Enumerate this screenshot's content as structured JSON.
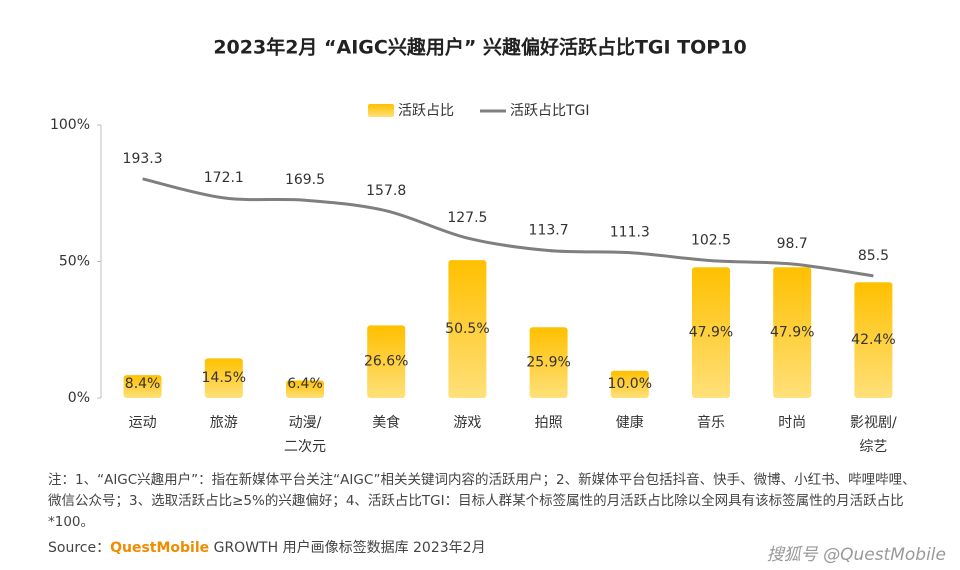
{
  "chart_data": {
    "type": "bar",
    "title": "2023年2月 “AIGC兴趣用户” 兴趣偏好活跃占比TGI TOP10",
    "categories": [
      "运动",
      "旅游",
      "动漫/\n二次元",
      "美食",
      "游戏",
      "拍照",
      "健康",
      "音乐",
      "时尚",
      "影视剧/\n综艺"
    ],
    "series": [
      {
        "name": "活跃占比",
        "type": "bar",
        "color": "#ffc000",
        "values": [
          8.4,
          14.5,
          6.4,
          26.6,
          50.5,
          25.9,
          10.0,
          47.9,
          47.9,
          42.4
        ],
        "value_labels": [
          "8.4%",
          "14.5%",
          "6.4%",
          "26.6%",
          "50.5%",
          "25.9%",
          "10.0%",
          "47.9%",
          "47.9%",
          "42.4%"
        ]
      },
      {
        "name": "活跃占比TGI",
        "type": "line",
        "axis": "y2",
        "color": "#7f7f7f",
        "values": [
          193.3,
          172.1,
          169.5,
          157.8,
          127.5,
          113.7,
          111.3,
          102.5,
          98.7,
          85.5
        ]
      }
    ],
    "ylim": [
      0,
      100
    ],
    "yticks": [
      {
        "value": 0,
        "label": "0%"
      },
      {
        "value": 50,
        "label": "50%"
      },
      {
        "value": 100,
        "label": "100%"
      }
    ],
    "y2lim": [
      -50,
      253
    ],
    "grid": false,
    "legend": "top",
    "note": "注：1、“AIGC兴趣用户”：指在新媒体平台关注“AIGC”相关关键词内容的活跃用户；2、新媒体平台包括抖音、快手、微博、小红书、哔哩哔哩、微信公众号；3、选取活跃占比≥5%的兴趣偏好；4、活跃占比TGI：目标人群某个标签属性的月活跃占比除以全网具有该标签属性的月活跃占比*100。",
    "source": {
      "prefix": "Source：",
      "brand": "QuestMobile",
      "text": "GROWTH 用户画像标签数据库 2023年2月"
    },
    "watermark": "搜狐号 @QuestMobile"
  }
}
